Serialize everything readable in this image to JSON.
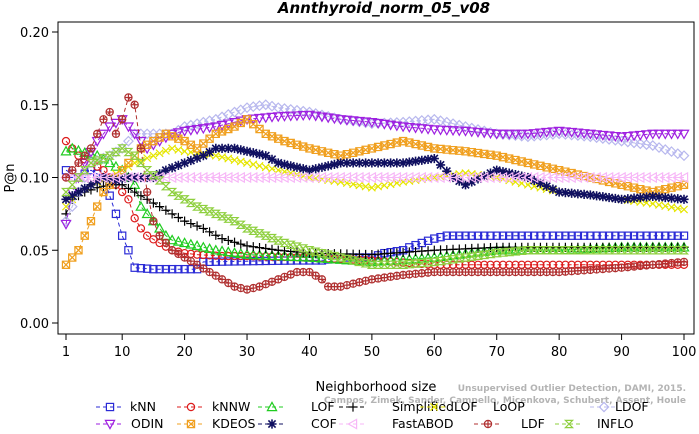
{
  "chart_data": {
    "type": "line",
    "title": "Annthyroid_norm_05_v08",
    "xlabel": "Neighborhood size",
    "ylabel": "P@n",
    "xlim": [
      1,
      100
    ],
    "ylim": [
      0.0,
      0.2
    ],
    "x_ticks": [
      1,
      10,
      20,
      30,
      40,
      50,
      60,
      70,
      80,
      90,
      100
    ],
    "y_ticks": [
      "0.00",
      "0.05",
      "0.10",
      "0.15",
      "0.20"
    ],
    "citation": [
      "Unsupervised Outlier Detection, DAMI, 2015.",
      "Campos, Zimek, Sander, Campello, Micenkova, Schubert, Assent, Houle"
    ],
    "legend_position": "bottom",
    "series": [
      {
        "name": "kNN",
        "color": "#2b2bd6",
        "marker": "square",
        "points": [
          [
            1,
            0.105
          ],
          [
            3,
            0.1
          ],
          [
            5,
            0.105
          ],
          [
            7,
            0.1
          ],
          [
            9,
            0.075
          ],
          [
            10,
            0.06
          ],
          [
            11,
            0.05
          ],
          [
            12,
            0.038
          ],
          [
            15,
            0.037
          ],
          [
            16,
            0.037
          ],
          [
            22,
            0.037
          ],
          [
            23,
            0.042
          ],
          [
            38,
            0.043
          ],
          [
            42,
            0.043
          ],
          [
            45,
            0.045
          ],
          [
            50,
            0.045
          ],
          [
            52,
            0.048
          ],
          [
            55,
            0.05
          ],
          [
            56,
            0.052
          ],
          [
            58,
            0.055
          ],
          [
            60,
            0.058
          ],
          [
            62,
            0.06
          ],
          [
            100,
            0.06
          ]
        ]
      },
      {
        "name": "kNNW",
        "color": "#dd1c1c",
        "marker": "circle",
        "points": [
          [
            1,
            0.125
          ],
          [
            3,
            0.115
          ],
          [
            5,
            0.11
          ],
          [
            7,
            0.105
          ],
          [
            9,
            0.095
          ],
          [
            10,
            0.09
          ],
          [
            11,
            0.085
          ],
          [
            12,
            0.072
          ],
          [
            13,
            0.065
          ],
          [
            14,
            0.06
          ],
          [
            16,
            0.055
          ],
          [
            18,
            0.05
          ],
          [
            20,
            0.048
          ],
          [
            22,
            0.047
          ],
          [
            26,
            0.046
          ],
          [
            30,
            0.046
          ],
          [
            40,
            0.045
          ],
          [
            50,
            0.043
          ],
          [
            60,
            0.04
          ],
          [
            70,
            0.04
          ],
          [
            80,
            0.04
          ],
          [
            90,
            0.04
          ],
          [
            100,
            0.04
          ]
        ]
      },
      {
        "name": "LOF",
        "color": "#20cc20",
        "marker": "triangle",
        "points": [
          [
            1,
            0.118
          ],
          [
            2,
            0.12
          ],
          [
            4,
            0.117
          ],
          [
            6,
            0.115
          ],
          [
            8,
            0.11
          ],
          [
            10,
            0.105
          ],
          [
            12,
            0.095
          ],
          [
            13,
            0.08
          ],
          [
            14,
            0.075
          ],
          [
            15,
            0.07
          ],
          [
            16,
            0.065
          ],
          [
            17,
            0.06
          ],
          [
            18,
            0.057
          ],
          [
            20,
            0.055
          ],
          [
            25,
            0.05
          ],
          [
            30,
            0.047
          ],
          [
            40,
            0.045
          ],
          [
            50,
            0.042
          ],
          [
            60,
            0.045
          ],
          [
            70,
            0.05
          ],
          [
            80,
            0.05
          ],
          [
            90,
            0.052
          ],
          [
            100,
            0.052
          ]
        ]
      },
      {
        "name": "SimplifiedLOF",
        "color": "#000000",
        "marker": "plus",
        "points": [
          [
            1,
            0.075
          ],
          [
            2,
            0.085
          ],
          [
            4,
            0.09
          ],
          [
            6,
            0.093
          ],
          [
            8,
            0.095
          ],
          [
            10,
            0.095
          ],
          [
            12,
            0.09
          ],
          [
            14,
            0.085
          ],
          [
            16,
            0.08
          ],
          [
            18,
            0.075
          ],
          [
            20,
            0.07
          ],
          [
            23,
            0.065
          ],
          [
            26,
            0.058
          ],
          [
            30,
            0.053
          ],
          [
            35,
            0.05
          ],
          [
            40,
            0.048
          ],
          [
            50,
            0.047
          ],
          [
            60,
            0.05
          ],
          [
            70,
            0.052
          ],
          [
            80,
            0.052
          ],
          [
            90,
            0.052
          ],
          [
            100,
            0.052
          ]
        ]
      },
      {
        "name": "LoOP",
        "color": "#e6e600",
        "marker": "cross",
        "points": [
          [
            1,
            0.08
          ],
          [
            3,
            0.09
          ],
          [
            5,
            0.095
          ],
          [
            8,
            0.1
          ],
          [
            12,
            0.11
          ],
          [
            15,
            0.115
          ],
          [
            18,
            0.12
          ],
          [
            20,
            0.118
          ],
          [
            25,
            0.115
          ],
          [
            30,
            0.11
          ],
          [
            35,
            0.105
          ],
          [
            40,
            0.1
          ],
          [
            45,
            0.097
          ],
          [
            50,
            0.093
          ],
          [
            55,
            0.097
          ],
          [
            60,
            0.1
          ],
          [
            65,
            0.103
          ],
          [
            70,
            0.1
          ],
          [
            75,
            0.095
          ],
          [
            80,
            0.09
          ],
          [
            85,
            0.088
          ],
          [
            90,
            0.085
          ],
          [
            95,
            0.082
          ],
          [
            100,
            0.078
          ]
        ]
      },
      {
        "name": "LDOF",
        "color": "#b8b8ee",
        "marker": "diamond",
        "points": [
          [
            1,
            0.07
          ],
          [
            3,
            0.09
          ],
          [
            5,
            0.11
          ],
          [
            8,
            0.115
          ],
          [
            10,
            0.12
          ],
          [
            12,
            0.13
          ],
          [
            15,
            0.13
          ],
          [
            18,
            0.13
          ],
          [
            20,
            0.135
          ],
          [
            25,
            0.14
          ],
          [
            28,
            0.145
          ],
          [
            30,
            0.148
          ],
          [
            33,
            0.15
          ],
          [
            35,
            0.148
          ],
          [
            40,
            0.145
          ],
          [
            45,
            0.14
          ],
          [
            50,
            0.137
          ],
          [
            55,
            0.138
          ],
          [
            60,
            0.14
          ],
          [
            65,
            0.135
          ],
          [
            70,
            0.13
          ],
          [
            75,
            0.128
          ],
          [
            80,
            0.13
          ],
          [
            85,
            0.128
          ],
          [
            90,
            0.125
          ],
          [
            95,
            0.122
          ],
          [
            100,
            0.115
          ]
        ]
      },
      {
        "name": "ODIN",
        "color": "#9e1fe0",
        "marker": "triangle-down",
        "points": [
          [
            1,
            0.068
          ],
          [
            2,
            0.09
          ],
          [
            4,
            0.11
          ],
          [
            6,
            0.125
          ],
          [
            8,
            0.135
          ],
          [
            10,
            0.14
          ],
          [
            12,
            0.13
          ],
          [
            14,
            0.12
          ],
          [
            16,
            0.125
          ],
          [
            18,
            0.13
          ],
          [
            20,
            0.132
          ],
          [
            25,
            0.135
          ],
          [
            30,
            0.14
          ],
          [
            35,
            0.142
          ],
          [
            40,
            0.143
          ],
          [
            45,
            0.14
          ],
          [
            50,
            0.138
          ],
          [
            55,
            0.135
          ],
          [
            60,
            0.133
          ],
          [
            65,
            0.132
          ],
          [
            70,
            0.13
          ],
          [
            75,
            0.13
          ],
          [
            80,
            0.132
          ],
          [
            85,
            0.13
          ],
          [
            90,
            0.128
          ],
          [
            95,
            0.13
          ],
          [
            100,
            0.13
          ]
        ]
      },
      {
        "name": "KDEOS",
        "color": "#f0a020",
        "marker": "square-x",
        "points": [
          [
            1,
            0.04
          ],
          [
            3,
            0.05
          ],
          [
            5,
            0.07
          ],
          [
            7,
            0.09
          ],
          [
            9,
            0.1
          ],
          [
            11,
            0.11
          ],
          [
            13,
            0.12
          ],
          [
            15,
            0.125
          ],
          [
            17,
            0.13
          ],
          [
            20,
            0.125
          ],
          [
            22,
            0.12
          ],
          [
            25,
            0.13
          ],
          [
            28,
            0.135
          ],
          [
            30,
            0.14
          ],
          [
            33,
            0.13
          ],
          [
            36,
            0.125
          ],
          [
            40,
            0.12
          ],
          [
            45,
            0.115
          ],
          [
            50,
            0.12
          ],
          [
            55,
            0.125
          ],
          [
            60,
            0.12
          ],
          [
            65,
            0.118
          ],
          [
            70,
            0.115
          ],
          [
            75,
            0.11
          ],
          [
            80,
            0.105
          ],
          [
            85,
            0.1
          ],
          [
            90,
            0.095
          ],
          [
            95,
            0.09
          ],
          [
            100,
            0.095
          ]
        ]
      },
      {
        "name": "COF",
        "color": "#101060",
        "marker": "asterisk",
        "points": [
          [
            1,
            0.085
          ],
          [
            3,
            0.09
          ],
          [
            5,
            0.095
          ],
          [
            7,
            0.1
          ],
          [
            9,
            0.098
          ],
          [
            11,
            0.1
          ],
          [
            13,
            0.1
          ],
          [
            15,
            0.1
          ],
          [
            17,
            0.105
          ],
          [
            20,
            0.11
          ],
          [
            23,
            0.115
          ],
          [
            25,
            0.12
          ],
          [
            28,
            0.12
          ],
          [
            30,
            0.118
          ],
          [
            33,
            0.115
          ],
          [
            35,
            0.11
          ],
          [
            40,
            0.105
          ],
          [
            45,
            0.11
          ],
          [
            50,
            0.11
          ],
          [
            55,
            0.11
          ],
          [
            60,
            0.113
          ],
          [
            63,
            0.1
          ],
          [
            65,
            0.095
          ],
          [
            70,
            0.105
          ],
          [
            75,
            0.1
          ],
          [
            80,
            0.09
          ],
          [
            85,
            0.088
          ],
          [
            90,
            0.085
          ],
          [
            95,
            0.087
          ],
          [
            100,
            0.085
          ]
        ]
      },
      {
        "name": "FastABOD",
        "color": "#f7b7f7",
        "marker": "triangle-left",
        "points": [
          [
            1,
            0.1
          ],
          [
            5,
            0.1
          ],
          [
            10,
            0.1
          ],
          [
            20,
            0.1
          ],
          [
            30,
            0.1
          ],
          [
            40,
            0.1
          ],
          [
            50,
            0.1
          ],
          [
            60,
            0.1
          ],
          [
            70,
            0.1
          ],
          [
            80,
            0.1
          ],
          [
            90,
            0.1
          ],
          [
            100,
            0.1
          ]
        ]
      },
      {
        "name": "LDF",
        "color": "#b03030",
        "marker": "circle-plus",
        "points": [
          [
            1,
            0.1
          ],
          [
            3,
            0.11
          ],
          [
            5,
            0.12
          ],
          [
            7,
            0.14
          ],
          [
            8,
            0.145
          ],
          [
            9,
            0.13
          ],
          [
            10,
            0.14
          ],
          [
            11,
            0.155
          ],
          [
            12,
            0.15
          ],
          [
            13,
            0.12
          ],
          [
            14,
            0.09
          ],
          [
            15,
            0.07
          ],
          [
            16,
            0.06
          ],
          [
            18,
            0.05
          ],
          [
            20,
            0.045
          ],
          [
            22,
            0.04
          ],
          [
            24,
            0.035
          ],
          [
            26,
            0.03
          ],
          [
            28,
            0.025
          ],
          [
            30,
            0.023
          ],
          [
            32,
            0.025
          ],
          [
            35,
            0.03
          ],
          [
            38,
            0.035
          ],
          [
            40,
            0.035
          ],
          [
            42,
            0.03
          ],
          [
            43,
            0.025
          ],
          [
            45,
            0.025
          ],
          [
            50,
            0.03
          ],
          [
            55,
            0.033
          ],
          [
            60,
            0.035
          ],
          [
            65,
            0.035
          ],
          [
            70,
            0.035
          ],
          [
            80,
            0.035
          ],
          [
            90,
            0.038
          ],
          [
            100,
            0.042
          ]
        ]
      },
      {
        "name": "INFLO",
        "color": "#8ecf3e",
        "marker": "hourglass",
        "points": [
          [
            1,
            0.09
          ],
          [
            3,
            0.1
          ],
          [
            5,
            0.11
          ],
          [
            8,
            0.115
          ],
          [
            10,
            0.12
          ],
          [
            12,
            0.115
          ],
          [
            14,
            0.105
          ],
          [
            16,
            0.098
          ],
          [
            18,
            0.09
          ],
          [
            20,
            0.085
          ],
          [
            22,
            0.08
          ],
          [
            25,
            0.075
          ],
          [
            28,
            0.07
          ],
          [
            30,
            0.065
          ],
          [
            33,
            0.06
          ],
          [
            36,
            0.055
          ],
          [
            40,
            0.05
          ],
          [
            45,
            0.045
          ],
          [
            50,
            0.04
          ],
          [
            55,
            0.04
          ],
          [
            60,
            0.042
          ],
          [
            65,
            0.045
          ],
          [
            70,
            0.048
          ],
          [
            75,
            0.05
          ],
          [
            80,
            0.05
          ],
          [
            90,
            0.05
          ],
          [
            100,
            0.05
          ]
        ]
      }
    ]
  }
}
